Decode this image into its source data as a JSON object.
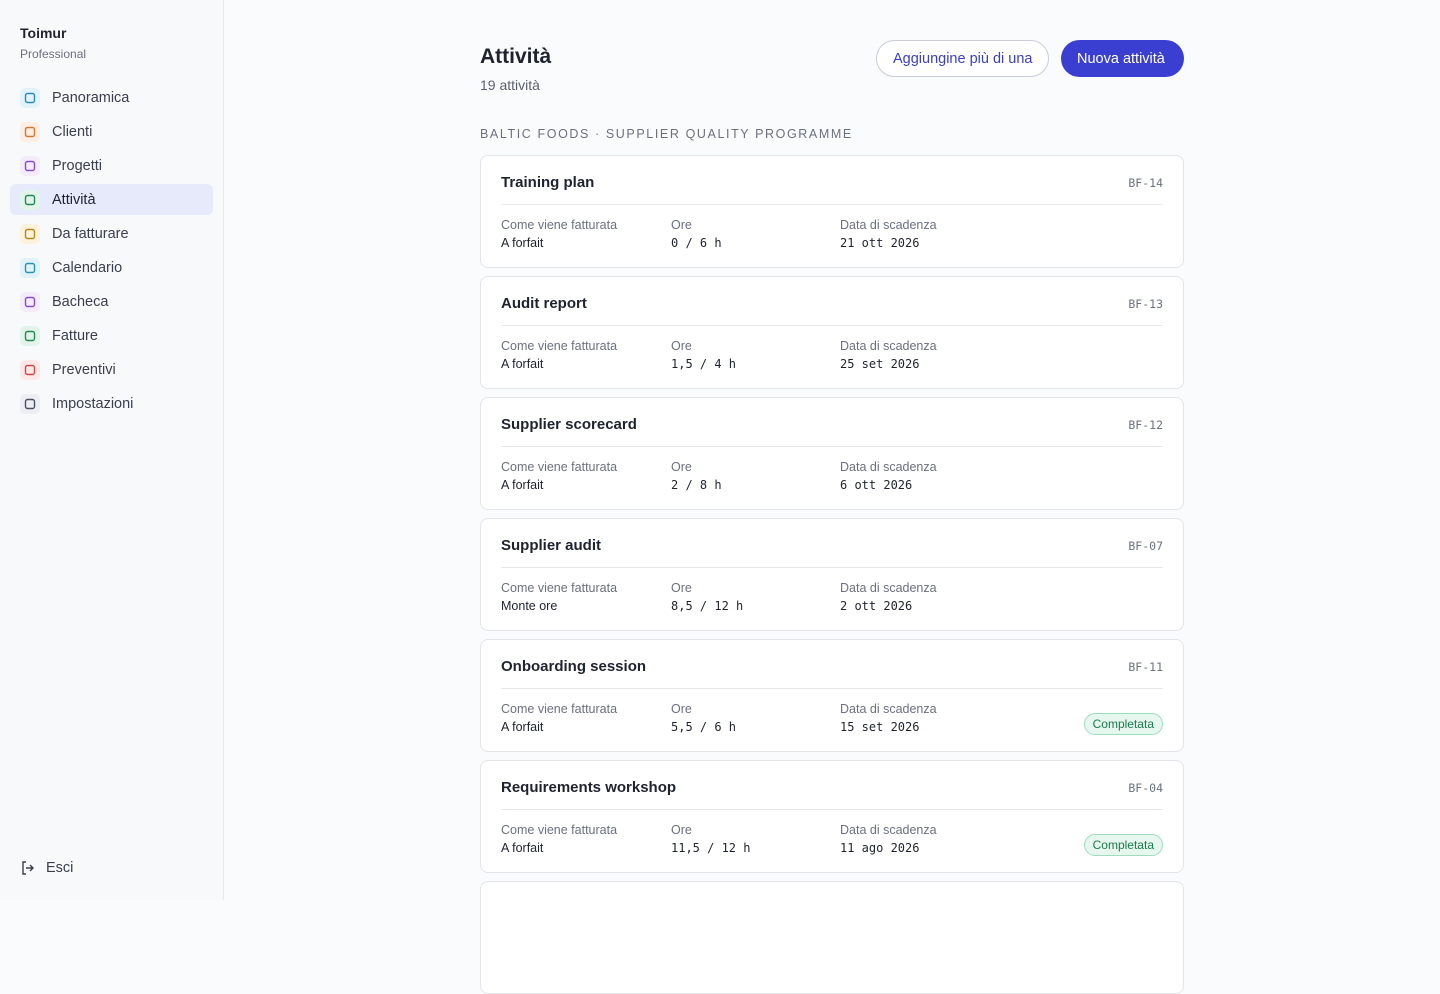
{
  "sidebar": {
    "user": "Toimur",
    "plan": "Professional",
    "nav": [
      "Panoramica",
      "Clienti",
      "Progetti",
      "Attività",
      "Da fatturare",
      "Calendario",
      "Bacheca",
      "Fatture",
      "Preventivi",
      "Impostazioni"
    ],
    "active": 3,
    "logout": "Esci"
  },
  "header": {
    "title": "Attività",
    "subtitle": "19 attività",
    "secondary_button": "Aggiungine più di una",
    "primary_button": "Nuova attività"
  },
  "section": "BALTIC FOODS · SUPPLIER QUALITY PROGRAMME",
  "field_labels": {
    "billing": "Come viene fatturata",
    "hours": "Ore",
    "due": "Data di scadenza"
  },
  "cards": [
    {
      "title": "Training plan",
      "code": "BF-14",
      "billing": "A forfait",
      "hours": "0 / 6 h",
      "due": "21 ott 2026"
    },
    {
      "title": "Audit report",
      "code": "BF-13",
      "billing": "A forfait",
      "hours": "1,5 / 4 h",
      "due": "25 set 2026"
    },
    {
      "title": "Supplier scorecard",
      "code": "BF-12",
      "billing": "A forfait",
      "hours": "2 / 8 h",
      "due": "6 ott 2026"
    },
    {
      "title": "Supplier audit",
      "code": "BF-07",
      "billing": "Monte ore",
      "hours": "8,5 / 12 h",
      "due": "2 ott 2026"
    },
    {
      "title": "Onboarding session",
      "code": "BF-11",
      "billing": "A forfait",
      "hours": "5,5 / 6 h",
      "due": "15 set 2026",
      "status": "Completata"
    },
    {
      "title": "Requirements workshop",
      "code": "BF-04",
      "billing": "A forfait",
      "hours": "11,5 / 12 h",
      "due": "11 ago 2026",
      "status": "Completata"
    }
  ]
}
